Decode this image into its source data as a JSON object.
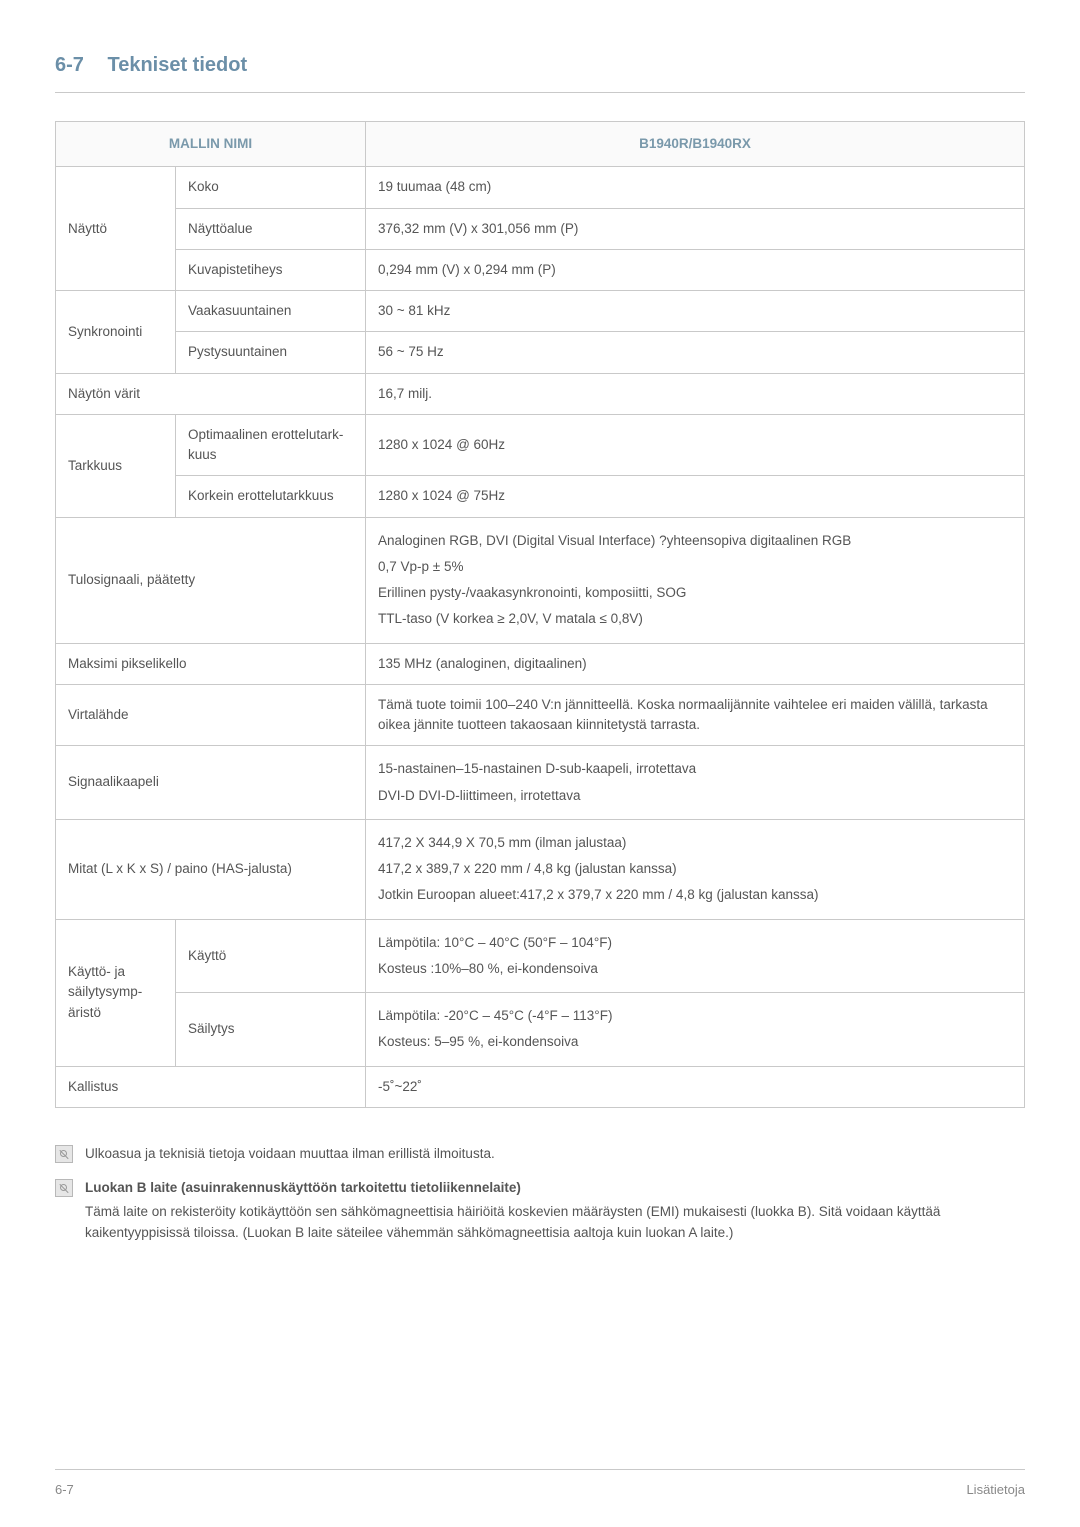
{
  "header": {
    "num": "6-7",
    "title": "Tekniset tiedot"
  },
  "table": {
    "th1": "MALLIN NIMI",
    "th2": "B1940R/B1940RX",
    "rows": {
      "display": {
        "label": "Näyttö",
        "size_label": "Koko",
        "size_val": "19 tuumaa (48 cm)",
        "area_label": "Näyttöalue",
        "area_val": "376,32 mm (V) x 301,056 mm (P)",
        "pitch_label": "Kuvapistetiheys",
        "pitch_val": "0,294 mm (V) x 0,294 mm (P)"
      },
      "sync": {
        "label": "Synkronointi",
        "h_label": "Vaakasuuntainen",
        "h_val": "30 ~ 81 kHz",
        "v_label": "Pystysuuntainen",
        "v_val": "56 ~ 75 Hz"
      },
      "colors": {
        "label": "Näytön värit",
        "val": "16,7 milj."
      },
      "res": {
        "label": "Tarkkuus",
        "opt_label": "Optimaalinen erottelutark-kuus",
        "opt_val": "1280 x 1024 @ 60Hz",
        "max_label": "Korkein erottelutarkkuus",
        "max_val": "1280 x 1024 @ 75Hz"
      },
      "input": {
        "label": "Tulosignaali, päätetty",
        "l1": "Analoginen RGB, DVI (Digital Visual Interface) ?yhteensopiva digitaalinen RGB",
        "l2": "0,7 Vp-p ± 5%",
        "l3": "Erillinen pysty-/vaakasynkronointi, komposiitti, SOG",
        "l4": "TTL-taso (V korkea ≥ 2,0V, V matala ≤ 0,8V)"
      },
      "pixclock": {
        "label": "Maksimi pikselikello",
        "val": "135 MHz (analoginen, digitaalinen)"
      },
      "power": {
        "label": "Virtalähde",
        "val": "Tämä tuote toimii 100–240 V:n jännitteellä. Koska normaalijännite vaihtelee eri maiden välillä, tarkasta oikea jännite tuotteen takaosaan kiinnitetystä tarrasta."
      },
      "cable": {
        "label": "Signaalikaapeli",
        "l1": "15-nastainen–15-nastainen D-sub-kaapeli, irrotettava",
        "l2": "DVI-D DVI-D-liittimeen, irrotettava"
      },
      "dims": {
        "label": "Mitat (L x K x S) / paino (HAS-jalusta)",
        "l1": "417,2 X 344,9 X 70,5 mm (ilman jalustaa)",
        "l2": "417,2 x 389,7 x 220 mm / 4,8 kg (jalustan kanssa)",
        "l3": "Jotkin Euroopan alueet:417,2 x 379,7 x 220 mm / 4,8 kg (jalustan kanssa)"
      },
      "env": {
        "label": "Käyttö- ja säilytysymp-äristö",
        "use_label": "Käyttö",
        "use_l1": "Lämpötila: 10°C – 40°C (50°F – 104°F)",
        "use_l2": "Kosteus :10%–80 %, ei-kondensoiva",
        "store_label": "Säilytys",
        "store_l1": "Lämpötila: -20°C – 45°C (-4°F – 113°F)",
        "store_l2": "Kosteus: 5–95 %, ei-kondensoiva"
      },
      "tilt": {
        "label": "Kallistus",
        "val": "-5˚~22˚"
      }
    }
  },
  "notes": {
    "n1": "Ulkoasua ja teknisiä tietoja voidaan muuttaa ilman erillistä ilmoitusta.",
    "n2_title": "Luokan B laite (asuinrakennuskäyttöön tarkoitettu tietoliikennelaite)",
    "n2_body": "Tämä laite on rekisteröity kotikäyttöön sen sähkömagneettisia häiriöitä koskevien määräysten (EMI) mukaisesti (luokka B). Sitä voidaan käyttää kaikentyyppisissä tiloissa. (Luokan B laite säteilee vähemmän sähkömagneettisia aaltoja kuin luokan A laite.)"
  },
  "footer": {
    "left": "6-7",
    "right": "Lisätietoja"
  }
}
